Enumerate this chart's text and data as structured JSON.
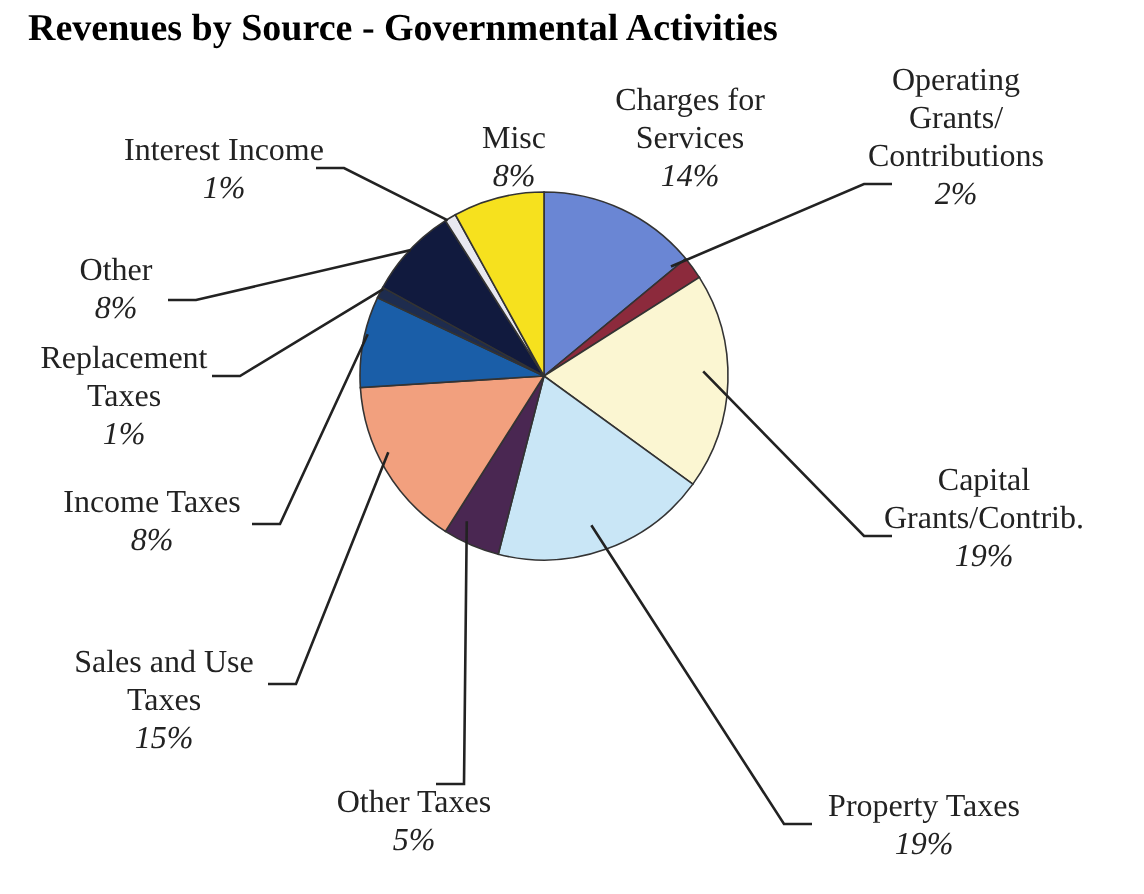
{
  "chart_data": {
    "type": "pie",
    "title": "Revenues by Source - Governmental Activities",
    "categories": [
      "Charges for Services",
      "Operating Grants/ Contributions",
      "Capital Grants/Contrib.",
      "Property Taxes",
      "Other Taxes",
      "Sales and Use Taxes",
      "Income Taxes",
      "Replacement Taxes",
      "Other",
      "Interest Income",
      "Misc"
    ],
    "values": [
      14,
      2,
      19,
      19,
      5,
      15,
      8,
      1,
      8,
      1,
      8
    ],
    "colors": [
      "#6a86d4",
      "#8c2a3c",
      "#fbf6d2",
      "#c9e6f6",
      "#4a2752",
      "#f2a07e",
      "#1a5ea8",
      "#1e2c4e",
      "#111a3e",
      "#e8e8f0",
      "#f6e11e"
    ],
    "value_labels": [
      "14%",
      "2%",
      "19%",
      "19%",
      "5%",
      "15%",
      "8%",
      "1%",
      "8%",
      "1%",
      "8%"
    ]
  }
}
